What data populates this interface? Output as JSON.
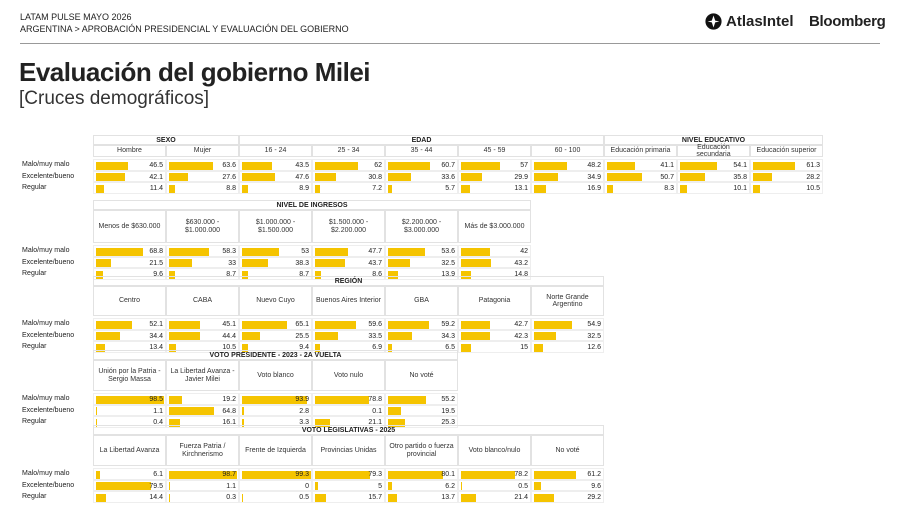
{
  "header": {
    "brand": "LATAM PULSE MAYO 2026",
    "breadcrumb": "ARGENTINA > APROBACIÓN PRESIDENCIAL Y EVALUACIÓN DEL GOBIERNO",
    "logos": [
      "AtlasIntel",
      "Bloomberg"
    ]
  },
  "title": "Evaluación del gobierno Milei",
  "subtitle": "[Cruces demográficos]",
  "row_labels": [
    "Malo/muy malo",
    "Excelente/bueno",
    "Regular"
  ],
  "tables": [
    {
      "groups": [
        {
          "title": "SEXO",
          "columns": [
            {
              "label": "Hombre",
              "values": [
                46.5,
                42.1,
                11.4
              ]
            },
            {
              "label": "Mujer",
              "values": [
                63.6,
                27.6,
                8.8
              ]
            }
          ]
        },
        {
          "title": "EDAD",
          "columns": [
            {
              "label": "16 - 24",
              "values": [
                43.5,
                47.6,
                8.9
              ]
            },
            {
              "label": "25 - 34",
              "values": [
                62,
                30.8,
                7.2
              ]
            },
            {
              "label": "35 - 44",
              "values": [
                60.7,
                33.6,
                5.7
              ]
            },
            {
              "label": "45 - 59",
              "values": [
                57,
                29.9,
                13.1
              ]
            },
            {
              "label": "60 - 100",
              "values": [
                48.2,
                34.9,
                16.9
              ]
            }
          ]
        },
        {
          "title": "NIVEL EDUCATIVO",
          "columns": [
            {
              "label": "Educación primaria",
              "values": [
                41.1,
                50.7,
                8.3
              ]
            },
            {
              "label": "Educación secundaria",
              "values": [
                54.1,
                35.8,
                10.1
              ]
            },
            {
              "label": "Educación superior",
              "values": [
                61.3,
                28.2,
                10.5
              ]
            }
          ]
        }
      ]
    },
    {
      "groups": [
        {
          "title": "NIVEL DE INGRESOS",
          "columns": [
            {
              "label": "Menos de $630.000",
              "values": [
                68.8,
                21.5,
                9.6
              ]
            },
            {
              "label": "$630.000 - $1.000.000",
              "values": [
                58.3,
                33,
                8.7
              ]
            },
            {
              "label": "$1.000.000 - $1.500.000",
              "values": [
                53,
                38.3,
                8.7
              ]
            },
            {
              "label": "$1.500.000 - $2.200.000",
              "values": [
                47.7,
                43.7,
                8.6
              ]
            },
            {
              "label": "$2.200.000 - $3.000.000",
              "values": [
                53.6,
                32.5,
                13.9
              ]
            },
            {
              "label": "Más de $3.000.000",
              "values": [
                42,
                43.2,
                14.8
              ]
            }
          ]
        }
      ]
    },
    {
      "groups": [
        {
          "title": "REGIÓN",
          "columns": [
            {
              "label": "Centro",
              "values": [
                52.1,
                34.4,
                13.4
              ]
            },
            {
              "label": "CABA",
              "values": [
                45.1,
                44.4,
                10.5
              ]
            },
            {
              "label": "Nuevo Cuyo",
              "values": [
                65.1,
                25.5,
                9.4
              ]
            },
            {
              "label": "Buenos Aires Interior",
              "values": [
                59.6,
                33.5,
                6.9
              ]
            },
            {
              "label": "GBA",
              "values": [
                59.2,
                34.3,
                6.5
              ]
            },
            {
              "label": "Patagonia",
              "values": [
                42.7,
                42.3,
                15
              ]
            },
            {
              "label": "Norte Grande Argentino",
              "values": [
                54.9,
                32.5,
                12.6
              ]
            }
          ]
        }
      ]
    },
    {
      "groups": [
        {
          "title": "VOTO PRESIDENTE - 2023 - 2A VUELTA",
          "columns": [
            {
              "label": "Unión por la Patria - Sergio Massa",
              "values": [
                98.5,
                1.1,
                0.4
              ]
            },
            {
              "label": "La Libertad Avanza - Javier Milei",
              "values": [
                19.2,
                64.8,
                16.1
              ]
            },
            {
              "label": "Voto blanco",
              "values": [
                93.9,
                2.8,
                3.3
              ]
            },
            {
              "label": "Voto nulo",
              "values": [
                78.8,
                0.1,
                21.1
              ]
            },
            {
              "label": "No voté",
              "values": [
                55.2,
                19.5,
                25.3
              ]
            }
          ]
        }
      ]
    },
    {
      "groups": [
        {
          "title": "VOTO LEGISLATIVAS - 2025",
          "columns": [
            {
              "label": "La Libertad Avanza",
              "values": [
                6.1,
                79.5,
                14.4
              ]
            },
            {
              "label": "Fuerza Patria / Kirchnerismo",
              "values": [
                98.7,
                1.1,
                0.3
              ]
            },
            {
              "label": "Frente de Izquierda",
              "values": [
                99.3,
                0,
                0.5
              ]
            },
            {
              "label": "Provincias Unidas",
              "values": [
                79.3,
                5,
                15.7
              ]
            },
            {
              "label": "Otro partido o fuerza provincial",
              "values": [
                80.1,
                6.2,
                13.7
              ]
            },
            {
              "label": "Voto blanco/nulo",
              "values": [
                78.2,
                0.5,
                21.4
              ]
            },
            {
              "label": "No voté",
              "values": [
                61.2,
                9.6,
                29.2
              ]
            }
          ]
        }
      ]
    }
  ]
}
